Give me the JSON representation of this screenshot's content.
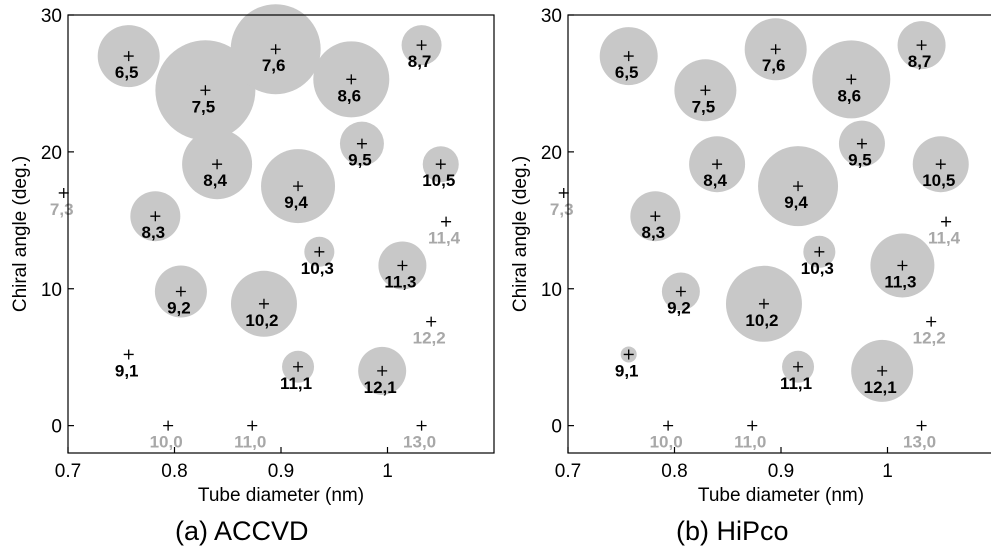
{
  "chart_data": [
    {
      "type": "scatter",
      "caption": "(a) ACCVD",
      "xlabel": "Tube diameter (nm)",
      "ylabel": "Chiral angle (deg.)",
      "xlim": [
        0.7,
        1.1
      ],
      "ylim": [
        -2,
        30
      ],
      "xticks": [
        0.7,
        0.8,
        0.9,
        1.0
      ],
      "xtick_labels": [
        "0.7",
        "0.8",
        "0.9",
        "1"
      ],
      "yticks": [
        0,
        10,
        20,
        30
      ],
      "ytick_labels": [
        "0",
        "10",
        "20",
        "30"
      ],
      "grid": false,
      "points": [
        {
          "label": "6,5",
          "x": 0.757,
          "y": 27.0,
          "size": 31,
          "detected": true
        },
        {
          "label": "7,5",
          "x": 0.829,
          "y": 24.5,
          "size": 50,
          "detected": true
        },
        {
          "label": "7,6",
          "x": 0.895,
          "y": 27.5,
          "size": 45,
          "detected": true
        },
        {
          "label": "8,7",
          "x": 1.032,
          "y": 27.8,
          "size": 20,
          "detected": true
        },
        {
          "label": "8,6",
          "x": 0.966,
          "y": 25.3,
          "size": 38,
          "detected": true
        },
        {
          "label": "8,4",
          "x": 0.84,
          "y": 19.1,
          "size": 35,
          "detected": true
        },
        {
          "label": "9,5",
          "x": 0.976,
          "y": 20.6,
          "size": 22,
          "detected": true
        },
        {
          "label": "9,4",
          "x": 0.916,
          "y": 17.5,
          "size": 37,
          "detected": true
        },
        {
          "label": "10,5",
          "x": 1.05,
          "y": 19.1,
          "size": 18,
          "detected": true
        },
        {
          "label": "8,3",
          "x": 0.782,
          "y": 15.3,
          "size": 25,
          "detected": true
        },
        {
          "label": "10,3",
          "x": 0.936,
          "y": 12.7,
          "size": 15,
          "detected": true
        },
        {
          "label": "11,3",
          "x": 1.014,
          "y": 11.7,
          "size": 24,
          "detected": true
        },
        {
          "label": "9,2",
          "x": 0.806,
          "y": 9.8,
          "size": 26,
          "detected": true
        },
        {
          "label": "10,2",
          "x": 0.884,
          "y": 8.9,
          "size": 33,
          "detected": true
        },
        {
          "label": "11,1",
          "x": 0.916,
          "y": 4.3,
          "size": 16,
          "detected": true
        },
        {
          "label": "12,1",
          "x": 0.995,
          "y": 4.0,
          "size": 24,
          "detected": true
        },
        {
          "label": "9,1",
          "x": 0.757,
          "y": 5.2,
          "size": 0,
          "detected": true
        },
        {
          "label": "7,3",
          "x": 0.696,
          "y": 17.0,
          "size": 0,
          "detected": false
        },
        {
          "label": "11,4",
          "x": 1.055,
          "y": 14.9,
          "size": 0,
          "detected": false
        },
        {
          "label": "12,2",
          "x": 1.041,
          "y": 7.6,
          "size": 0,
          "detected": false
        },
        {
          "label": "10,0",
          "x": 0.794,
          "y": 0,
          "size": 0,
          "detected": false
        },
        {
          "label": "11,0",
          "x": 0.873,
          "y": 0,
          "size": 0,
          "detected": false
        },
        {
          "label": "13,0",
          "x": 1.032,
          "y": 0,
          "size": 0,
          "detected": false
        }
      ]
    },
    {
      "type": "scatter",
      "caption": "(b) HiPco",
      "xlabel": "Tube diameter (nm)",
      "ylabel": "Chiral angle (deg.)",
      "xlim": [
        0.7,
        1.1
      ],
      "ylim": [
        -2,
        30
      ],
      "xticks": [
        0.7,
        0.8,
        0.9,
        1.0
      ],
      "xtick_labels": [
        "0.7",
        "0.8",
        "0.9",
        "1"
      ],
      "yticks": [
        0,
        10,
        20,
        30
      ],
      "ytick_labels": [
        "0",
        "10",
        "20",
        "30"
      ],
      "grid": false,
      "points": [
        {
          "label": "6,5",
          "x": 0.757,
          "y": 27.0,
          "size": 29,
          "detected": true
        },
        {
          "label": "7,5",
          "x": 0.829,
          "y": 24.5,
          "size": 31,
          "detected": true
        },
        {
          "label": "7,6",
          "x": 0.895,
          "y": 27.5,
          "size": 31,
          "detected": true
        },
        {
          "label": "8,7",
          "x": 1.032,
          "y": 27.8,
          "size": 24,
          "detected": true
        },
        {
          "label": "8,6",
          "x": 0.966,
          "y": 25.3,
          "size": 39,
          "detected": true
        },
        {
          "label": "8,4",
          "x": 0.84,
          "y": 19.1,
          "size": 28,
          "detected": true
        },
        {
          "label": "9,5",
          "x": 0.976,
          "y": 20.6,
          "size": 23,
          "detected": true
        },
        {
          "label": "9,4",
          "x": 0.916,
          "y": 17.5,
          "size": 40,
          "detected": true
        },
        {
          "label": "10,5",
          "x": 1.05,
          "y": 19.1,
          "size": 28,
          "detected": true
        },
        {
          "label": "8,3",
          "x": 0.782,
          "y": 15.3,
          "size": 25,
          "detected": true
        },
        {
          "label": "10,3",
          "x": 0.936,
          "y": 12.7,
          "size": 16,
          "detected": true
        },
        {
          "label": "11,3",
          "x": 1.014,
          "y": 11.7,
          "size": 32,
          "detected": true
        },
        {
          "label": "9,2",
          "x": 0.806,
          "y": 9.8,
          "size": 19,
          "detected": true
        },
        {
          "label": "10,2",
          "x": 0.884,
          "y": 8.9,
          "size": 38,
          "detected": true
        },
        {
          "label": "11,1",
          "x": 0.916,
          "y": 4.3,
          "size": 16,
          "detected": true
        },
        {
          "label": "12,1",
          "x": 0.995,
          "y": 4.0,
          "size": 31,
          "detected": true
        },
        {
          "label": "9,1",
          "x": 0.757,
          "y": 5.2,
          "size": 8,
          "detected": true
        },
        {
          "label": "7,3",
          "x": 0.696,
          "y": 17.0,
          "size": 0,
          "detected": false
        },
        {
          "label": "11,4",
          "x": 1.055,
          "y": 14.9,
          "size": 0,
          "detected": false
        },
        {
          "label": "12,2",
          "x": 1.041,
          "y": 7.6,
          "size": 0,
          "detected": false
        },
        {
          "label": "10,0",
          "x": 0.794,
          "y": 0,
          "size": 0,
          "detected": false
        },
        {
          "label": "11,0",
          "x": 0.873,
          "y": 0,
          "size": 0,
          "detected": false
        },
        {
          "label": "13,0",
          "x": 1.032,
          "y": 0,
          "size": 0,
          "detected": false
        }
      ]
    }
  ],
  "colors": {
    "bubble": "#c8c8c8",
    "detected_label": "#000000",
    "undetected_label": "#a8a8a8",
    "marker": "#000000"
  }
}
